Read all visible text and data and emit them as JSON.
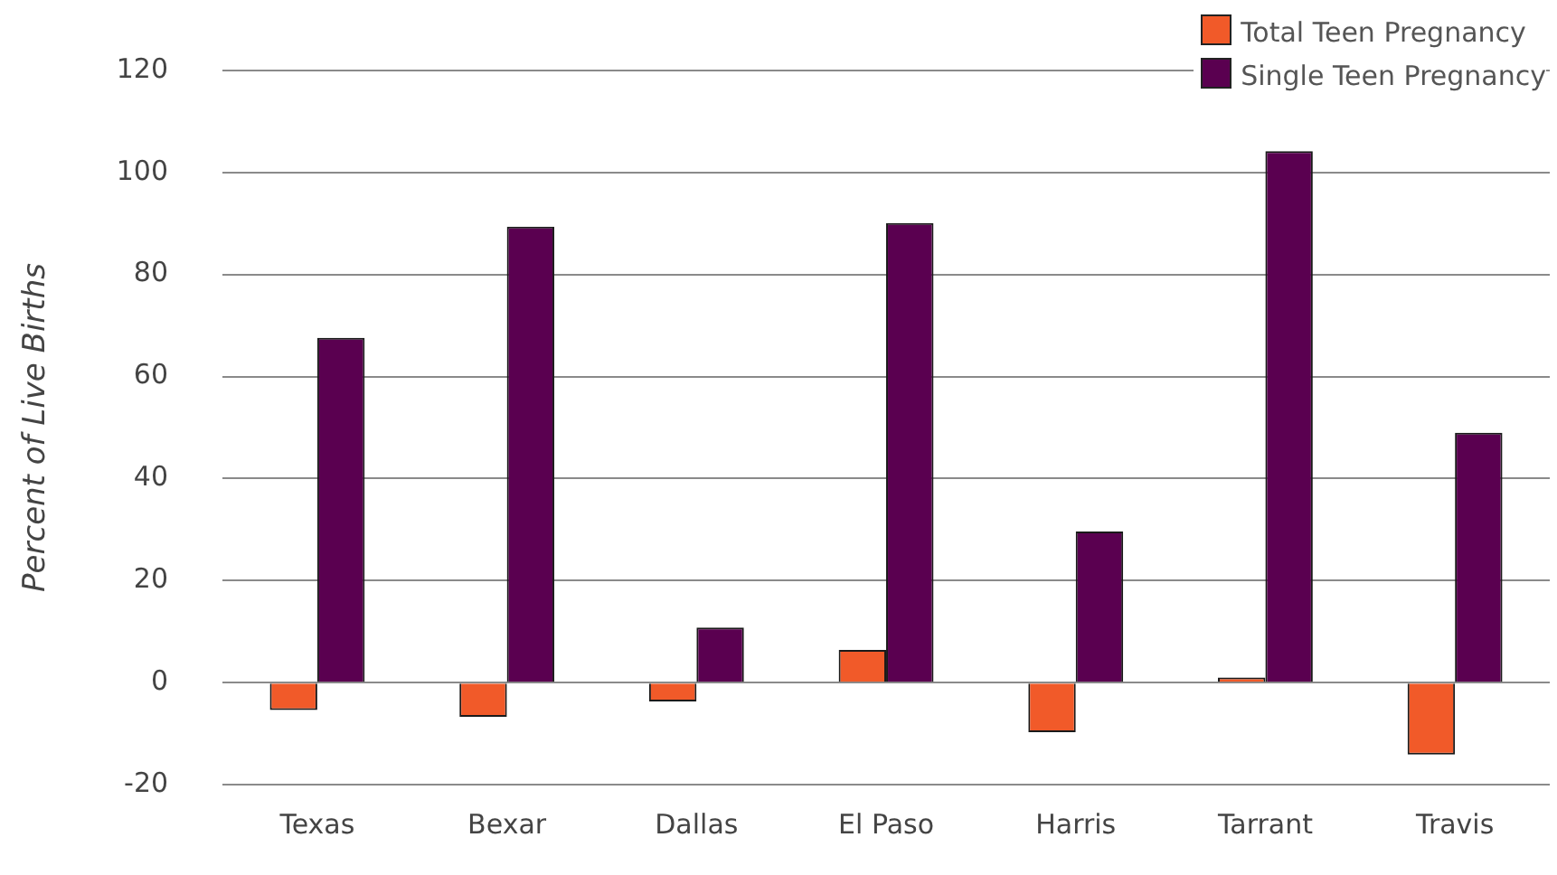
{
  "chart_data": {
    "type": "bar",
    "ylabel": "Percent of Live Births",
    "categories": [
      "Texas",
      "Bexar",
      "Dallas",
      "El Paso",
      "Harris",
      "Tarrant",
      "Travis"
    ],
    "series": [
      {
        "name": "Total Teen Pregnancy",
        "color": "#f15a29",
        "values": [
          -5.4,
          -6.7,
          -3.7,
          6.4,
          -9.7,
          1,
          -14.1
        ]
      },
      {
        "name": "Single Teen Pregnancy",
        "color": "#5a0050",
        "values": [
          67.6,
          89.4,
          10.8,
          90.1,
          29.6,
          104.2,
          49
        ]
      }
    ],
    "ylim": [
      -20,
      120
    ],
    "yticks": [
      -20,
      0,
      20,
      40,
      60,
      80,
      100,
      120
    ],
    "grid": "y",
    "legend": "top right"
  }
}
